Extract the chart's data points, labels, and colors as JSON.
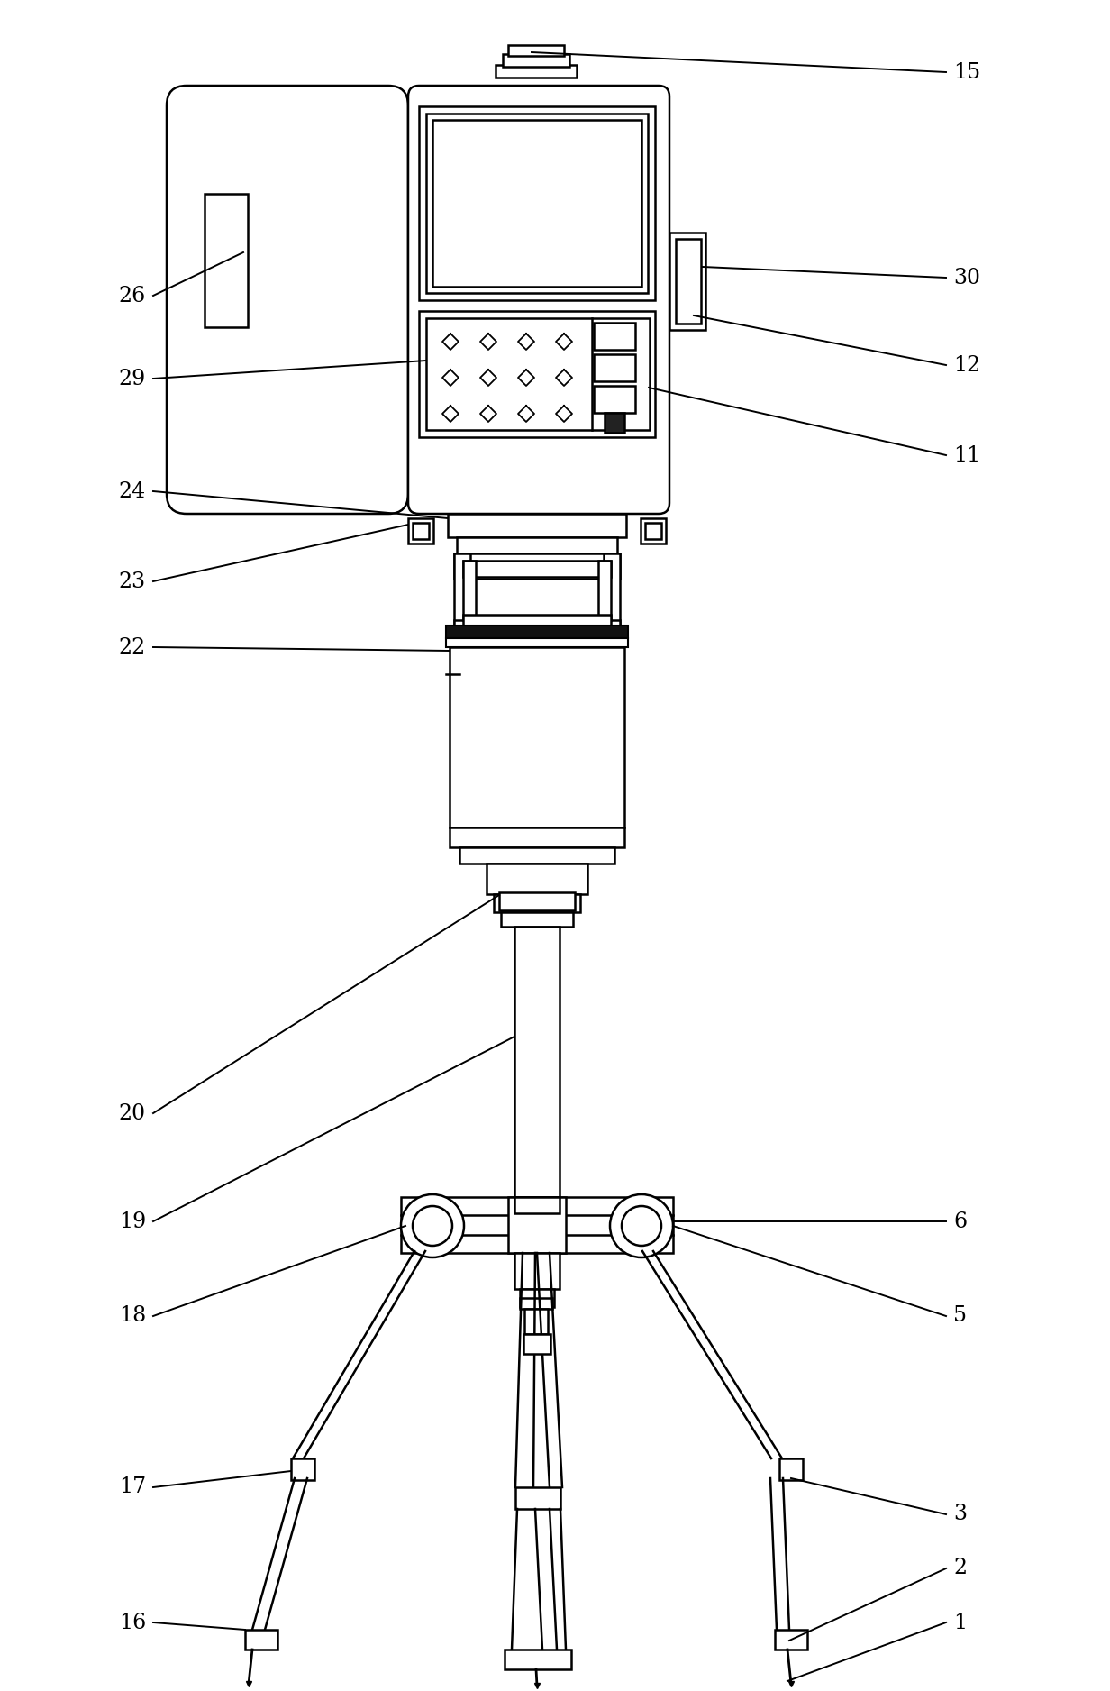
{
  "bg": "#ffffff",
  "lc": "#000000",
  "lw": 1.8,
  "lw2": 3.5,
  "fw": 12.32,
  "fh": 18.76,
  "dpi": 100,
  "CW": 1232,
  "CH": 1876
}
